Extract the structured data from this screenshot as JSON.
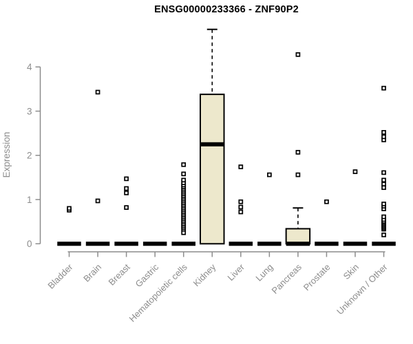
{
  "title": "ENSG00000233366 - ZNF90P2",
  "colors": {
    "box_fill": "#EDE8CC",
    "axis": "#8C8C8C",
    "data": "#000000",
    "background": "#FFFFFF"
  },
  "chart_data": {
    "type": "boxplot",
    "title": "ENSG00000233366 - ZNF90P2",
    "xlabel": "",
    "ylabel": "Expression",
    "ylim": [
      0,
      4.95
    ],
    "yticks": [
      0,
      1,
      2,
      3,
      4
    ],
    "grid": false,
    "legend": "none",
    "categories": [
      "Bladder",
      "Brain",
      "Breast",
      "Gastric",
      "Hematopoietic cells",
      "Kidney",
      "Liver",
      "Lung",
      "Pancreas",
      "Prostate",
      "Skin",
      "Unknown / Other"
    ],
    "boxes": [
      {
        "category": "Bladder",
        "q1": 0,
        "median": 0,
        "q3": 0,
        "whisker_low": 0,
        "whisker_high": 0,
        "outliers": [
          0.76,
          0.8
        ]
      },
      {
        "category": "Brain",
        "q1": 0,
        "median": 0,
        "q3": 0,
        "whisker_low": 0,
        "whisker_high": 0,
        "outliers": [
          0.97,
          3.43
        ]
      },
      {
        "category": "Breast",
        "q1": 0,
        "median": 0,
        "q3": 0,
        "whisker_low": 0,
        "whisker_high": 0,
        "outliers": [
          0.82,
          1.15,
          1.25,
          1.47
        ]
      },
      {
        "category": "Gastric",
        "q1": 0,
        "median": 0,
        "q3": 0,
        "whisker_low": 0,
        "whisker_high": 0,
        "outliers": []
      },
      {
        "category": "Hematopoietic cells",
        "q1": 0,
        "median": 0,
        "q3": 0,
        "whisker_low": 0,
        "whisker_high": 0,
        "outliers": [
          0.25,
          0.33,
          0.37,
          0.41,
          0.45,
          0.49,
          0.53,
          0.57,
          0.61,
          0.65,
          0.69,
          0.73,
          0.77,
          0.81,
          0.85,
          0.89,
          0.93,
          0.97,
          1.01,
          1.05,
          1.09,
          1.13,
          1.17,
          1.21,
          1.25,
          1.29,
          1.33,
          1.38,
          1.44,
          1.58,
          1.79
        ]
      },
      {
        "category": "Kidney",
        "q1": 0,
        "median": 2.25,
        "q3": 3.38,
        "whisker_low": 0,
        "whisker_high": 4.85,
        "outliers": []
      },
      {
        "category": "Liver",
        "q1": 0,
        "median": 0,
        "q3": 0,
        "whisker_low": 0,
        "whisker_high": 0,
        "outliers": [
          0.72,
          0.83,
          0.95,
          1.74
        ]
      },
      {
        "category": "Lung",
        "q1": 0,
        "median": 0,
        "q3": 0,
        "whisker_low": 0,
        "whisker_high": 0,
        "outliers": [
          1.56
        ]
      },
      {
        "category": "Pancreas",
        "q1": 0,
        "median": 0,
        "q3": 0.34,
        "whisker_low": 0,
        "whisker_high": 0.81,
        "outliers": [
          1.56,
          2.07,
          4.28
        ]
      },
      {
        "category": "Prostate",
        "q1": 0,
        "median": 0,
        "q3": 0,
        "whisker_low": 0,
        "whisker_high": 0,
        "outliers": [
          0.95
        ]
      },
      {
        "category": "Skin",
        "q1": 0,
        "median": 0,
        "q3": 0,
        "whisker_low": 0,
        "whisker_high": 0,
        "outliers": [
          1.63
        ]
      },
      {
        "category": "Unknown / Other",
        "q1": 0,
        "median": 0,
        "q3": 0,
        "whisker_low": 0,
        "whisker_high": 0,
        "outliers": [
          0.2,
          0.33,
          0.36,
          0.39,
          0.42,
          0.45,
          0.48,
          0.51,
          0.55,
          0.61,
          0.79,
          0.85,
          0.9,
          1.27,
          1.35,
          1.44,
          1.61,
          2.35,
          2.42,
          2.52,
          3.52
        ]
      }
    ]
  }
}
